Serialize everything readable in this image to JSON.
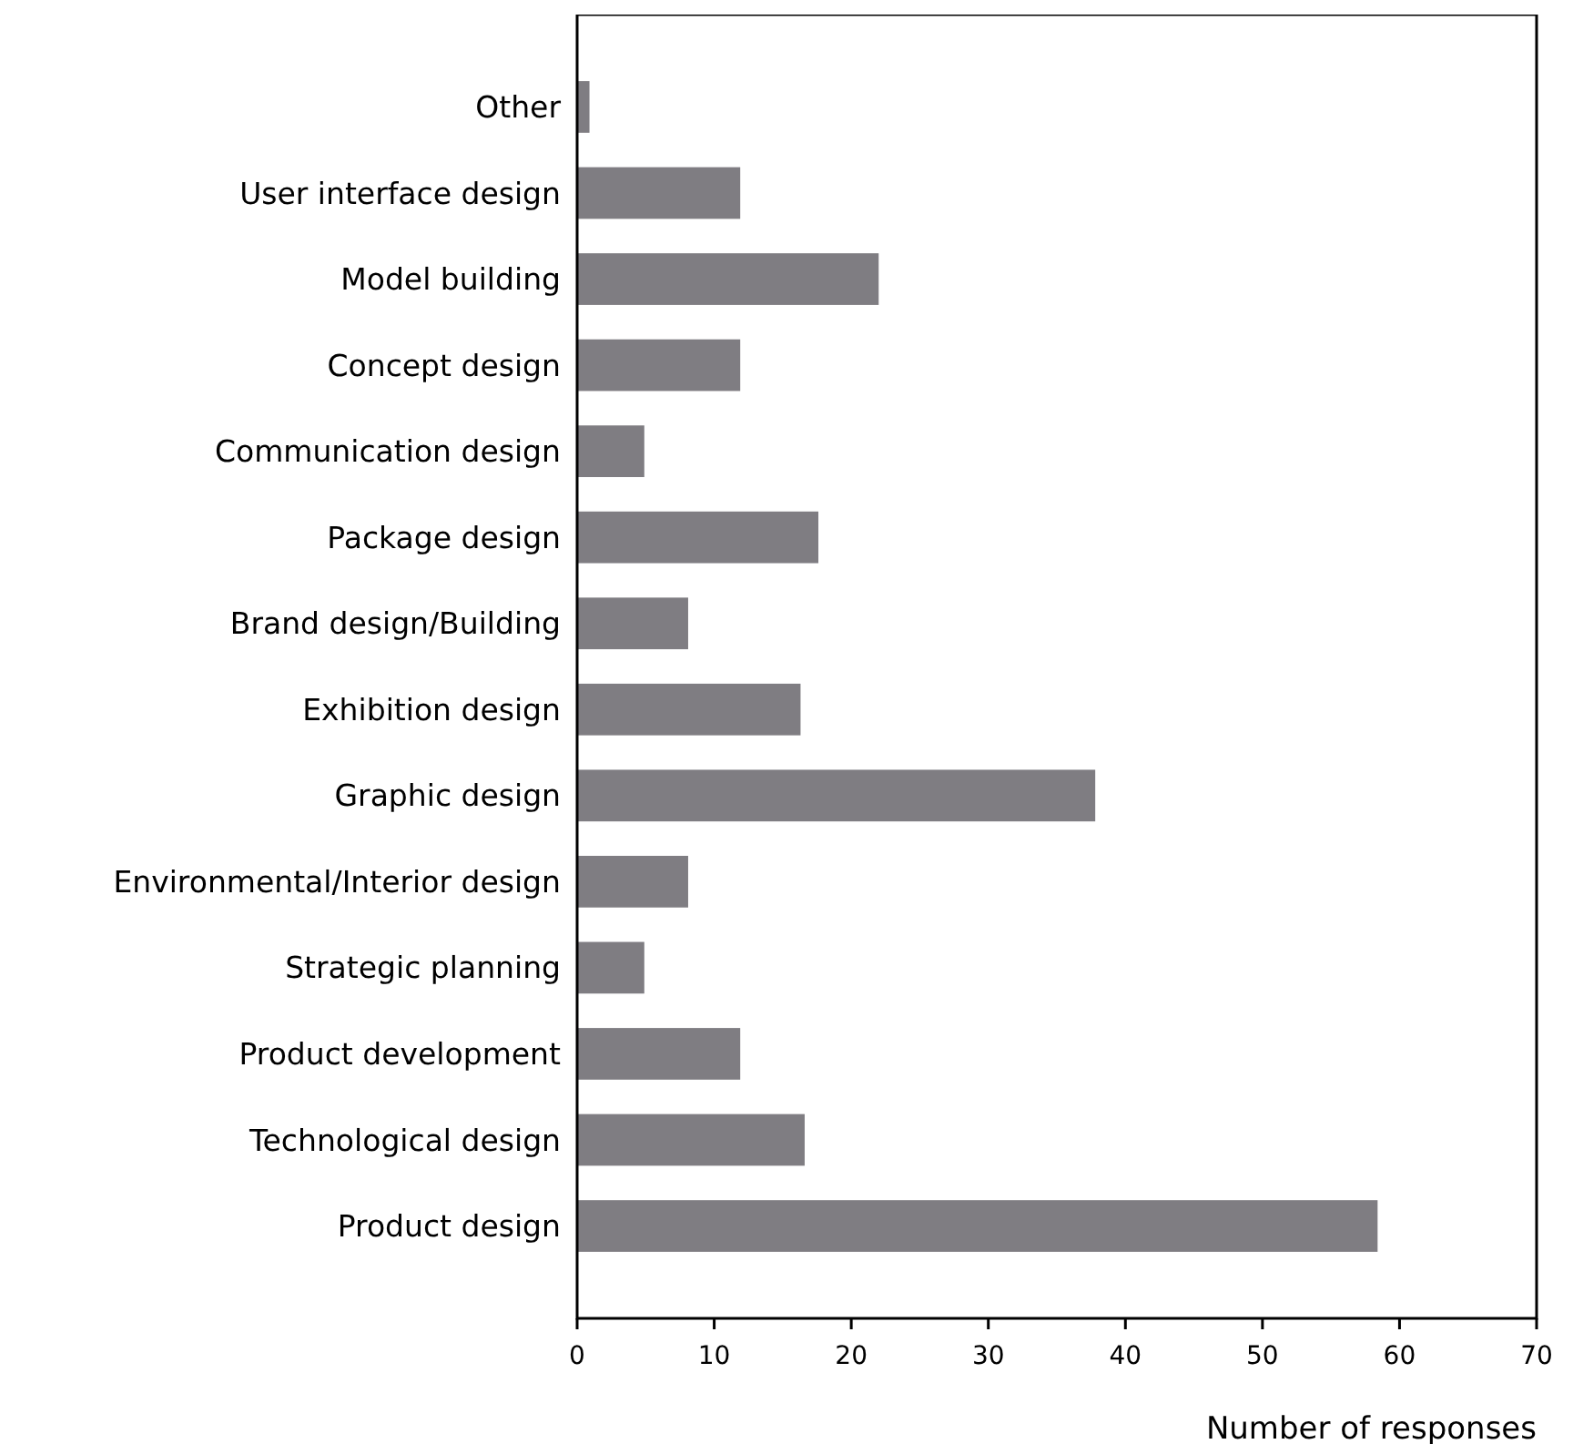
{
  "chart_data": {
    "type": "bar",
    "orientation": "horizontal",
    "xlabel": "Number of responses",
    "categories": [
      "Other",
      "User interface design",
      "Model building",
      "Concept design",
      "Communication design",
      "Package design",
      "Brand design/Building",
      "Exhibition design",
      "Graphic design",
      "Environmental/Interior design",
      "Strategic planning",
      "Product development",
      "Technological design",
      "Product design"
    ],
    "values": [
      0.9,
      11.9,
      22,
      11.9,
      4.9,
      17.6,
      8.1,
      16.3,
      37.8,
      8.1,
      4.9,
      11.9,
      16.6,
      58.4
    ],
    "color": "#7f7d82",
    "xlim": [
      0,
      70
    ],
    "xticks": [
      0,
      10,
      20,
      30,
      40,
      50,
      60,
      70
    ],
    "grid": false
  }
}
